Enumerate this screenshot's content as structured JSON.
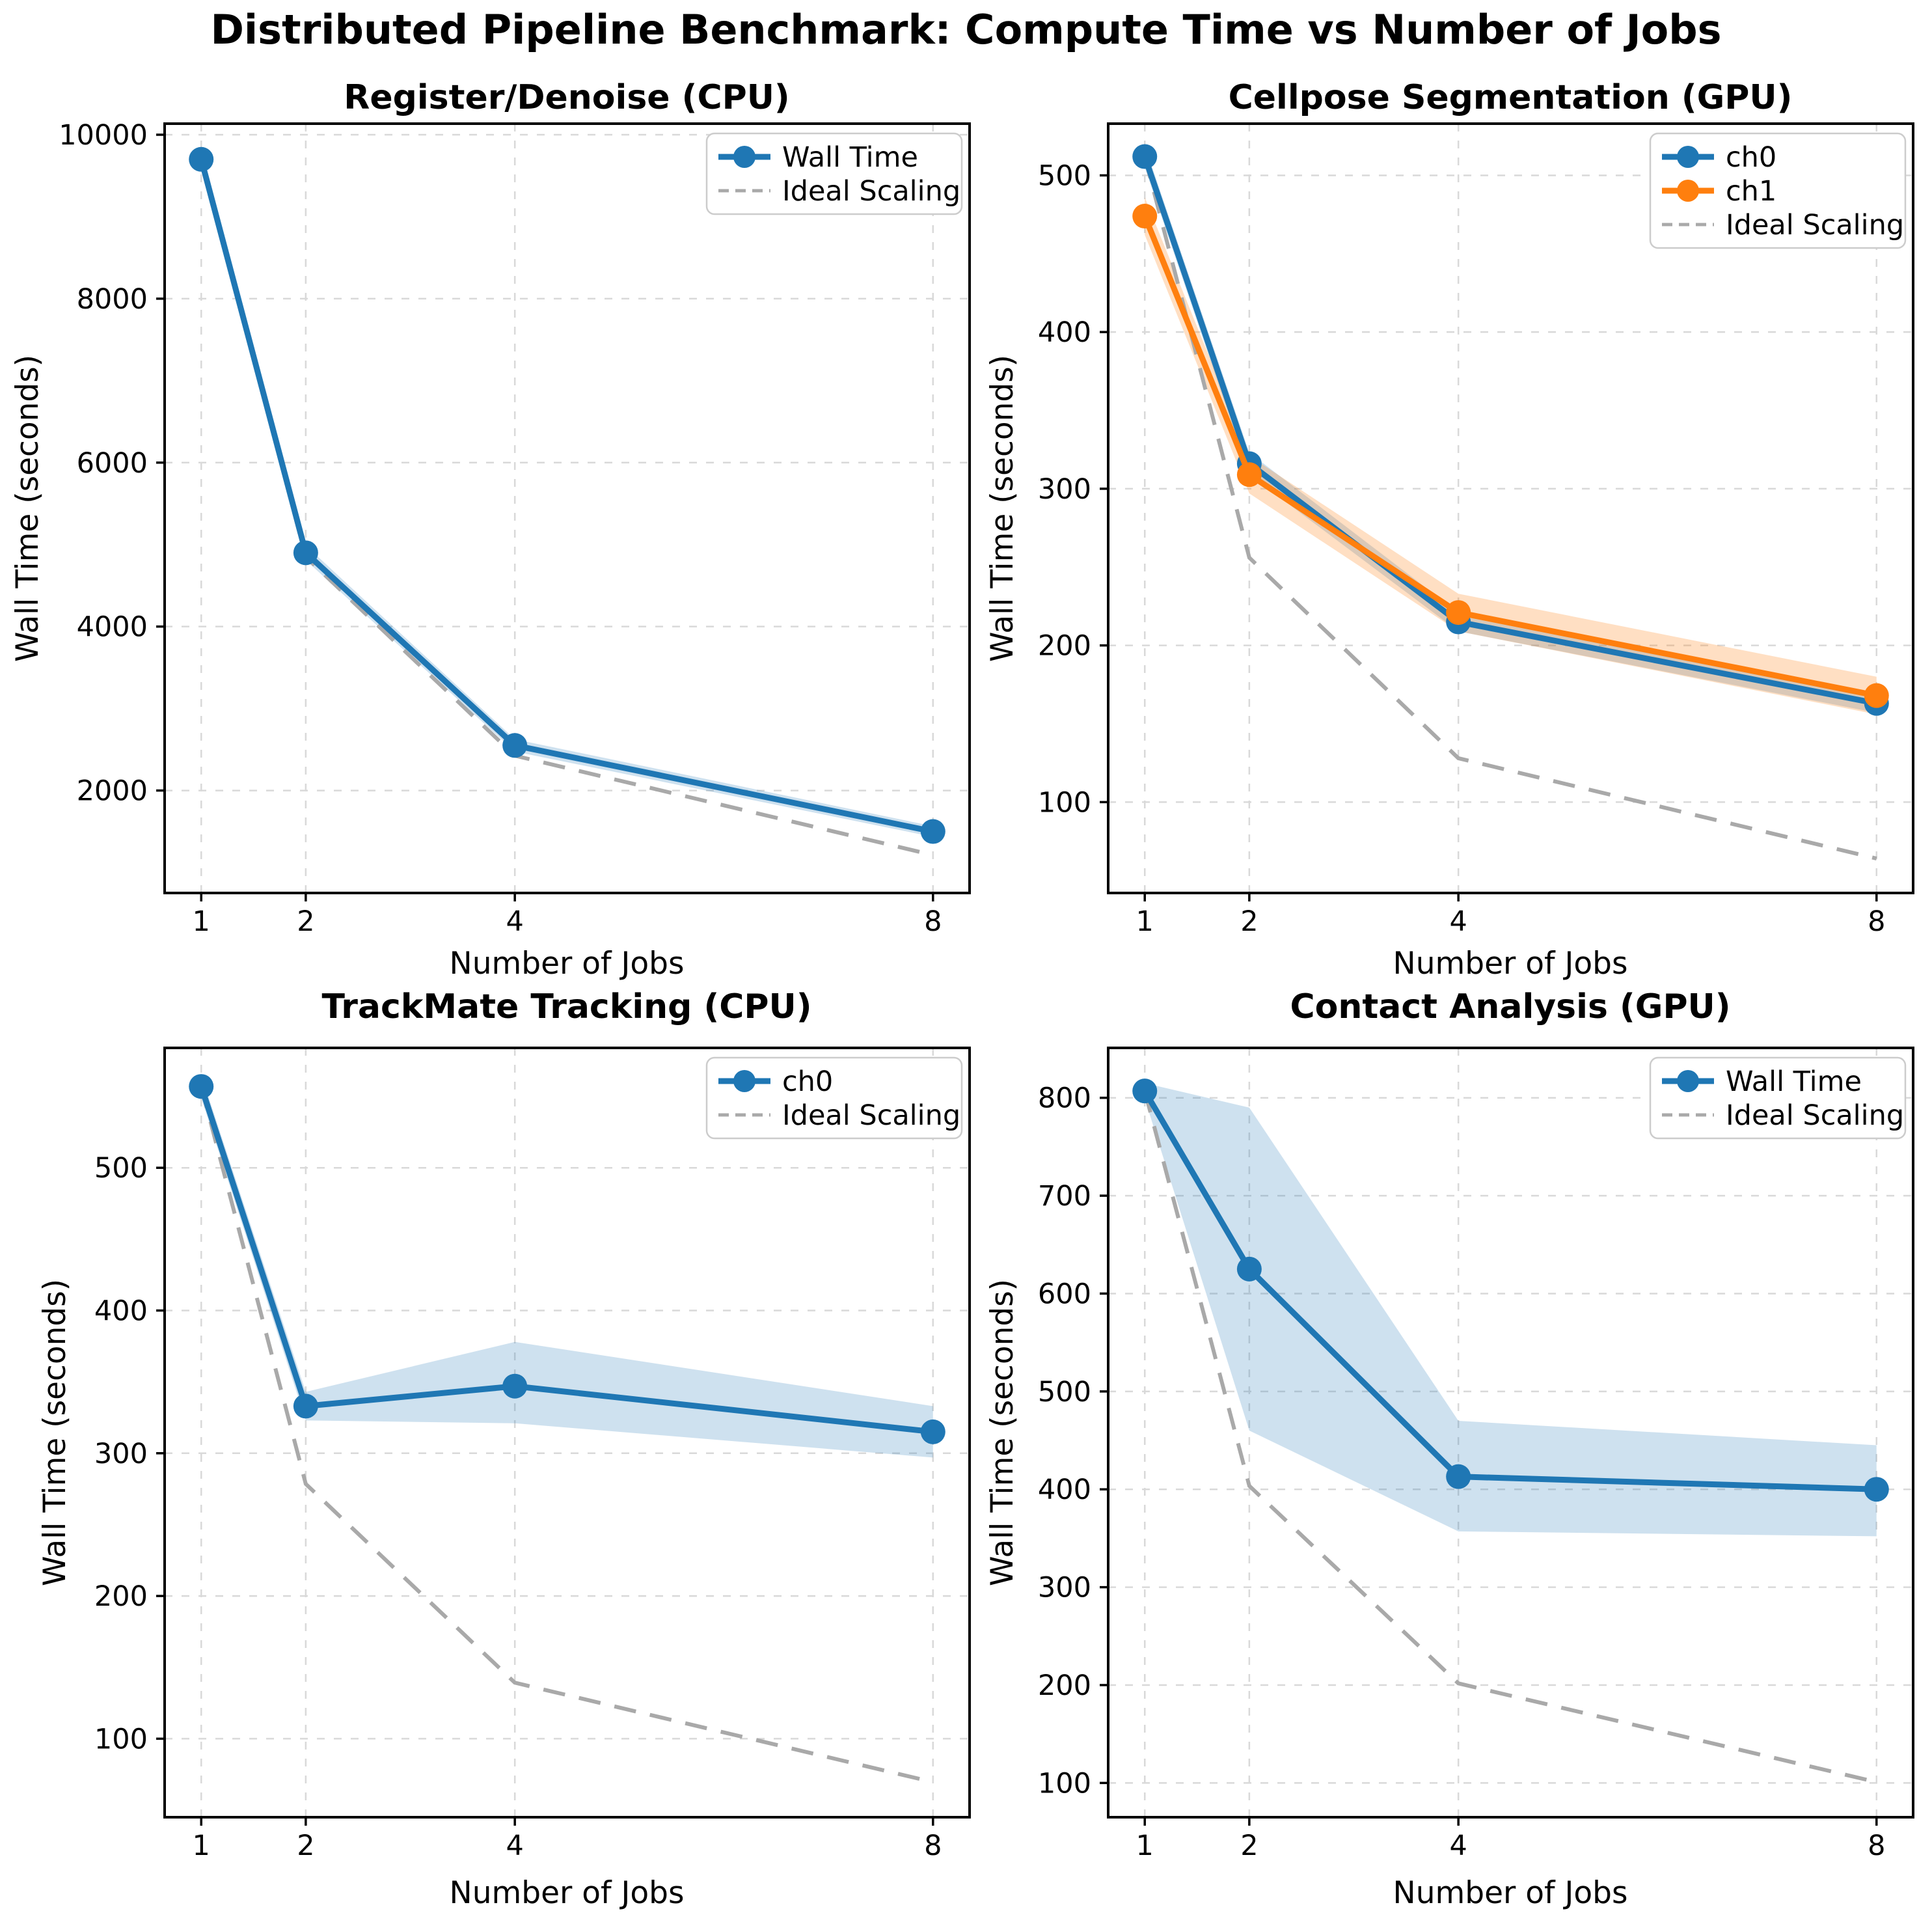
{
  "suptitle": "Distributed Pipeline Benchmark: Compute Time vs Number of Jobs",
  "colors": {
    "blue": "#1f77b4",
    "orange": "#ff7f0e",
    "ideal_gray": "#a9a9a9",
    "grid_gray": "#d9d9d9",
    "band_blue": "rgba(31,119,180,0.22)",
    "band_orange": "rgba(255,127,14,0.25)",
    "legend_border": "#cccccc",
    "spine": "#000000"
  },
  "chart_data": [
    {
      "type": "line",
      "title": "Register/Denoise (CPU)",
      "xlabel": "Number of Jobs",
      "ylabel": "Wall Time (seconds)",
      "x": [
        1,
        2,
        4,
        8
      ],
      "xticks": [
        1,
        2,
        4,
        8
      ],
      "xlim": [
        0.65,
        8.35
      ],
      "ylim": [
        750,
        10135
      ],
      "yticks": [
        2000,
        4000,
        6000,
        8000,
        10000
      ],
      "grid": true,
      "legend_position": "upper right",
      "series": [
        {
          "name": "Wall Time",
          "color": "#1f77b4",
          "band_color": "rgba(31,119,180,0.22)",
          "values": [
            9700,
            4900,
            2550,
            1500
          ],
          "band_low": [
            9640,
            4810,
            2475,
            1435
          ],
          "band_high": [
            9760,
            4990,
            2625,
            1565
          ]
        }
      ],
      "ideal": {
        "name": "Ideal Scaling",
        "color": "#a9a9a9",
        "values": [
          9700,
          4850,
          2425,
          1212.5
        ]
      }
    },
    {
      "type": "line",
      "title": "Cellpose Segmentation (GPU)",
      "xlabel": "Number of Jobs",
      "ylabel": "Wall Time (seconds)",
      "x": [
        1,
        2,
        4,
        8
      ],
      "xticks": [
        1,
        2,
        4,
        8
      ],
      "xlim": [
        0.65,
        8.35
      ],
      "ylim": [
        42,
        533
      ],
      "yticks": [
        100,
        200,
        300,
        400,
        500
      ],
      "grid": true,
      "legend_position": "upper right",
      "series": [
        {
          "name": "ch0",
          "color": "#1f77b4",
          "band_color": "rgba(31,119,180,0.22)",
          "values": [
            512,
            316,
            215,
            163
          ],
          "band_low": [
            505,
            309,
            209,
            157
          ],
          "band_high": [
            519,
            323,
            221,
            169
          ]
        },
        {
          "name": "ch1",
          "color": "#ff7f0e",
          "band_color": "rgba(255,127,14,0.25)",
          "values": [
            474,
            309,
            221,
            168
          ],
          "band_low": [
            462,
            297,
            209,
            156
          ],
          "band_high": [
            486,
            321,
            233,
            180
          ]
        }
      ],
      "ideal": {
        "name": "Ideal Scaling",
        "color": "#a9a9a9",
        "values": [
          512,
          256,
          128,
          64
        ]
      }
    },
    {
      "type": "line",
      "title": "TrackMate Tracking (CPU)",
      "xlabel": "Number of Jobs",
      "ylabel": "Wall Time (seconds)",
      "x": [
        1,
        2,
        4,
        8
      ],
      "xticks": [
        1,
        2,
        4,
        8
      ],
      "xlim": [
        0.65,
        8.35
      ],
      "ylim": [
        45,
        584
      ],
      "yticks": [
        100,
        200,
        300,
        400,
        500
      ],
      "grid": true,
      "legend_position": "upper right",
      "series": [
        {
          "name": "ch0",
          "color": "#1f77b4",
          "band_color": "rgba(31,119,180,0.22)",
          "values": [
            557,
            333,
            347,
            315
          ],
          "band_low": [
            549,
            323,
            321,
            297
          ],
          "band_high": [
            565,
            343,
            378,
            333
          ]
        }
      ],
      "ideal": {
        "name": "Ideal Scaling",
        "color": "#a9a9a9",
        "values": [
          557,
          278.5,
          139.25,
          69.6
        ]
      }
    },
    {
      "type": "line",
      "title": "Contact Analysis (GPU)",
      "xlabel": "Number of Jobs",
      "ylabel": "Wall Time (seconds)",
      "x": [
        1,
        2,
        4,
        8
      ],
      "xticks": [
        1,
        2,
        4,
        8
      ],
      "xlim": [
        0.65,
        8.35
      ],
      "ylim": [
        65,
        851
      ],
      "yticks": [
        100,
        200,
        300,
        400,
        500,
        600,
        700,
        800
      ],
      "grid": true,
      "legend_position": "upper right",
      "series": [
        {
          "name": "Wall Time",
          "color": "#1f77b4",
          "band_color": "rgba(31,119,180,0.22)",
          "values": [
            807,
            625,
            413,
            400
          ],
          "band_low": [
            799,
            460,
            357,
            352
          ],
          "band_high": [
            815,
            790,
            470,
            445
          ]
        }
      ],
      "ideal": {
        "name": "Ideal Scaling",
        "color": "#a9a9a9",
        "values": [
          807,
          403.5,
          201.75,
          100.9
        ]
      }
    }
  ]
}
